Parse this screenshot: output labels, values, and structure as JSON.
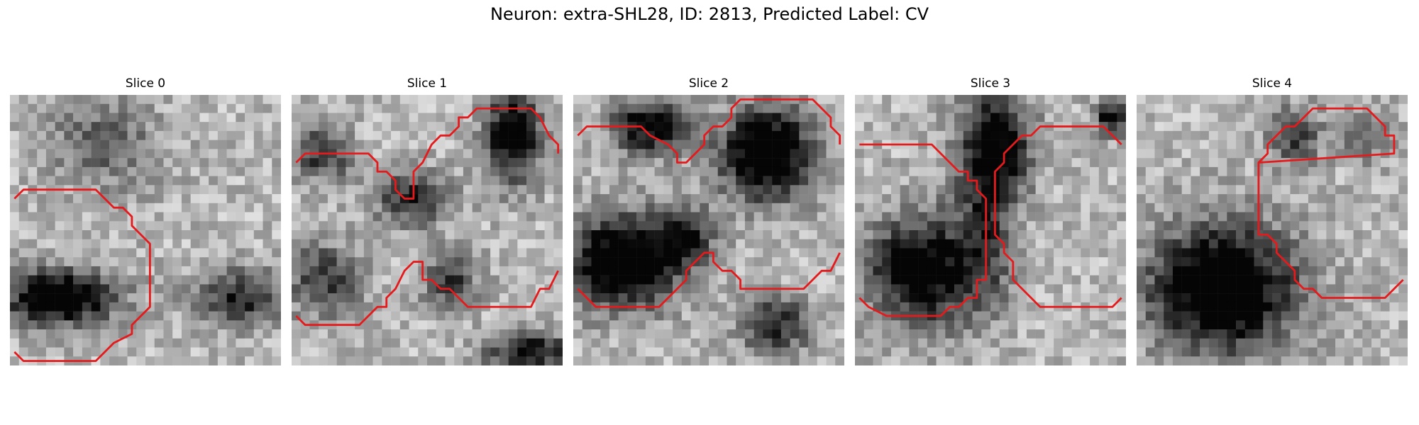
{
  "title": "Neuron: extra-SHL28, ID: 2813, Predicted Label: CV",
  "contour_color": "#e41a1c",
  "panels": [
    {
      "label": "Slice 0",
      "dark_blobs": [
        [
          10,
          5,
          6,
          5,
          0.35
        ],
        [
          5,
          22,
          6,
          3,
          0.95
        ],
        [
          25,
          22,
          5,
          3,
          0.6
        ]
      ],
      "contours": [
        [
          [
            0.5,
            11.5
          ],
          [
            1.5,
            10.5
          ],
          [
            9.5,
            10.5
          ],
          [
            11.5,
            12.5
          ],
          [
            12.5,
            12.5
          ],
          [
            13.5,
            13.5
          ],
          [
            13.5,
            14.5
          ],
          [
            15.5,
            16.5
          ],
          [
            15.5,
            23.5
          ],
          [
            14.5,
            24.5
          ],
          [
            13.5,
            25.5
          ],
          [
            13.5,
            26.5
          ],
          [
            11.5,
            27.5
          ],
          [
            9.5,
            29.5
          ],
          [
            1.5,
            29.5
          ],
          [
            0.5,
            28.5
          ]
        ]
      ]
    },
    {
      "label": "Slice 1",
      "dark_blobs": [
        [
          3,
          6,
          3,
          3,
          0.55
        ],
        [
          13,
          11,
          4,
          3,
          0.6
        ],
        [
          24,
          4,
          3,
          5,
          0.85
        ],
        [
          3,
          20,
          4,
          4,
          0.5
        ],
        [
          17,
          20,
          3,
          3,
          0.5
        ],
        [
          26,
          28,
          5,
          2,
          0.7
        ]
      ],
      "contours": [
        [
          [
            0.5,
            7.5
          ],
          [
            1.5,
            6.5
          ],
          [
            8.5,
            6.5
          ],
          [
            9.5,
            7.5
          ],
          [
            9.5,
            8.5
          ],
          [
            10.5,
            8.5
          ],
          [
            11.5,
            9.5
          ],
          [
            11.5,
            10.5
          ],
          [
            12.5,
            11.5
          ],
          [
            13.5,
            11.5
          ],
          [
            13.5,
            8.5
          ],
          [
            14.5,
            7.5
          ],
          [
            15.5,
            5.5
          ],
          [
            16.5,
            4.5
          ],
          [
            17.5,
            4.5
          ],
          [
            18.5,
            3.5
          ],
          [
            18.5,
            2.5
          ],
          [
            19.5,
            2.5
          ],
          [
            20.5,
            1.5
          ],
          [
            26.5,
            1.5
          ],
          [
            27.5,
            2.5
          ],
          [
            28.5,
            4.5
          ],
          [
            29.5,
            5.5
          ],
          [
            29.5,
            6.5
          ]
        ],
        [
          [
            0.5,
            24.5
          ],
          [
            1.5,
            25.5
          ],
          [
            7.5,
            25.5
          ],
          [
            8.5,
            24.5
          ],
          [
            9.5,
            23.5
          ],
          [
            10.5,
            23.5
          ],
          [
            10.5,
            22.5
          ],
          [
            11.5,
            21.5
          ],
          [
            12.5,
            19.5
          ],
          [
            13.5,
            18.5
          ],
          [
            13.5,
            18.5
          ],
          [
            14.5,
            18.5
          ],
          [
            14.5,
            20.5
          ],
          [
            15.5,
            20.5
          ],
          [
            16.5,
            21.5
          ],
          [
            17.5,
            21.5
          ],
          [
            18.5,
            22.5
          ],
          [
            19.5,
            23.5
          ],
          [
            26.5,
            23.5
          ],
          [
            27.5,
            21.5
          ],
          [
            28.5,
            21.5
          ],
          [
            29.5,
            19.5
          ]
        ]
      ]
    },
    {
      "label": "Slice 2",
      "dark_blobs": [
        [
          8,
          3,
          4,
          3,
          0.8
        ],
        [
          21,
          6,
          5,
          5,
          1.0
        ],
        [
          5,
          18,
          6,
          5,
          1.0
        ],
        [
          22,
          25,
          4,
          3,
          0.6
        ],
        [
          12,
          15,
          3,
          3,
          0.6
        ]
      ],
      "contours": [
        [
          [
            0.5,
            4.5
          ],
          [
            1.5,
            3.5
          ],
          [
            7.5,
            3.5
          ],
          [
            8.5,
            4.5
          ],
          [
            10.5,
            5.5
          ],
          [
            11.5,
            6.5
          ],
          [
            11.5,
            7.5
          ],
          [
            12.5,
            7.5
          ],
          [
            13.5,
            6.5
          ],
          [
            14.5,
            5.5
          ],
          [
            14.5,
            4.5
          ],
          [
            15.5,
            3.5
          ],
          [
            16.5,
            3.5
          ],
          [
            17.5,
            2.5
          ],
          [
            17.5,
            1.5
          ],
          [
            18.5,
            0.5
          ],
          [
            26.5,
            0.5
          ],
          [
            27.5,
            1.5
          ],
          [
            28.5,
            2.5
          ],
          [
            28.5,
            3.5
          ],
          [
            29.5,
            4.5
          ],
          [
            29.5,
            5.5
          ]
        ],
        [
          [
            0.5,
            21.5
          ],
          [
            2.5,
            23.5
          ],
          [
            9.5,
            23.5
          ],
          [
            10.5,
            22.5
          ],
          [
            11.5,
            21.5
          ],
          [
            12.5,
            20.5
          ],
          [
            12.5,
            19.5
          ],
          [
            13.5,
            18.5
          ],
          [
            14.5,
            17.5
          ],
          [
            15.5,
            17.5
          ],
          [
            15.5,
            18.5
          ],
          [
            16.5,
            19.5
          ],
          [
            17.5,
            19.5
          ],
          [
            18.5,
            20.5
          ],
          [
            18.5,
            20.5
          ],
          [
            18.5,
            21.5
          ],
          [
            25.5,
            21.5
          ],
          [
            26.5,
            20.5
          ],
          [
            27.5,
            19.5
          ],
          [
            28.5,
            19.5
          ],
          [
            29.5,
            17.5
          ]
        ]
      ]
    },
    {
      "label": "Slice 3",
      "dark_blobs": [
        [
          15,
          5,
          4,
          6,
          0.8
        ],
        [
          7,
          19,
          6,
          6,
          0.85
        ],
        [
          14,
          15,
          3,
          8,
          0.4
        ],
        [
          28,
          2,
          2,
          2,
          0.7
        ]
      ],
      "contours": [
        [
          [
            0.5,
            5.5
          ],
          [
            1.5,
            5.5
          ],
          [
            8.5,
            5.5
          ],
          [
            10.5,
            7.5
          ],
          [
            11.5,
            8.5
          ],
          [
            12.5,
            8.5
          ],
          [
            12.5,
            9.5
          ],
          [
            13.5,
            9.5
          ],
          [
            13.5,
            10.5
          ],
          [
            14.5,
            11.5
          ],
          [
            14.5,
            12.5
          ],
          [
            14.5,
            19.5
          ],
          [
            14.5,
            20.5
          ],
          [
            13.5,
            20.5
          ],
          [
            13.5,
            22.5
          ],
          [
            12.5,
            22.5
          ],
          [
            11.5,
            23.5
          ],
          [
            10.5,
            23.5
          ],
          [
            9.5,
            24.5
          ],
          [
            3.5,
            24.5
          ],
          [
            1.5,
            23.5
          ],
          [
            0.5,
            22.5
          ]
        ],
        [
          [
            29.5,
            5.5
          ],
          [
            27.5,
            3.5
          ],
          [
            20.5,
            3.5
          ],
          [
            19.5,
            4.5
          ],
          [
            18.5,
            4.5
          ],
          [
            17.5,
            5.5
          ],
          [
            16.5,
            6.5
          ],
          [
            16.5,
            7.5
          ],
          [
            15.5,
            8.5
          ],
          [
            15.5,
            15.5
          ],
          [
            16.5,
            16.5
          ],
          [
            16.5,
            17.5
          ],
          [
            17.5,
            18.5
          ],
          [
            17.5,
            20.5
          ],
          [
            18.5,
            21.5
          ],
          [
            18.5,
            21.5
          ],
          [
            19.5,
            22.5
          ],
          [
            20.5,
            23.5
          ],
          [
            28.5,
            23.5
          ],
          [
            29.5,
            22.5
          ]
        ]
      ]
    },
    {
      "label": "Slice 4",
      "dark_blobs": [
        [
          9,
          21,
          8,
          7,
          1.0
        ],
        [
          17,
          4,
          3,
          3,
          0.5
        ],
        [
          25,
          4,
          3,
          3,
          0.3
        ]
      ],
      "contours": [
        [
          [
            13.5,
            7.5
          ],
          [
            14.5,
            6.5
          ],
          [
            14.5,
            5.5
          ],
          [
            15.5,
            4.5
          ],
          [
            16.5,
            3.5
          ],
          [
            17.5,
            3.5
          ],
          [
            18.5,
            2.5
          ],
          [
            18.5,
            2.5
          ],
          [
            19.5,
            1.5
          ],
          [
            25.5,
            1.5
          ],
          [
            26.5,
            2.5
          ],
          [
            27.5,
            3.5
          ],
          [
            27.5,
            4.5
          ],
          [
            28.5,
            4.5
          ],
          [
            28.5,
            6.5
          ],
          [
            13.5,
            7.5
          ],
          [
            13.5,
            15.5
          ],
          [
            14.5,
            15.5
          ],
          [
            15.5,
            16.5
          ],
          [
            15.5,
            17.5
          ],
          [
            16.5,
            18.5
          ],
          [
            17.5,
            19.5
          ],
          [
            17.5,
            20.5
          ],
          [
            18.5,
            21.5
          ],
          [
            19.5,
            21.5
          ],
          [
            20.5,
            22.5
          ],
          [
            27.5,
            22.5
          ],
          [
            28.5,
            21.5
          ],
          [
            29.5,
            20.5
          ]
        ]
      ]
    }
  ]
}
